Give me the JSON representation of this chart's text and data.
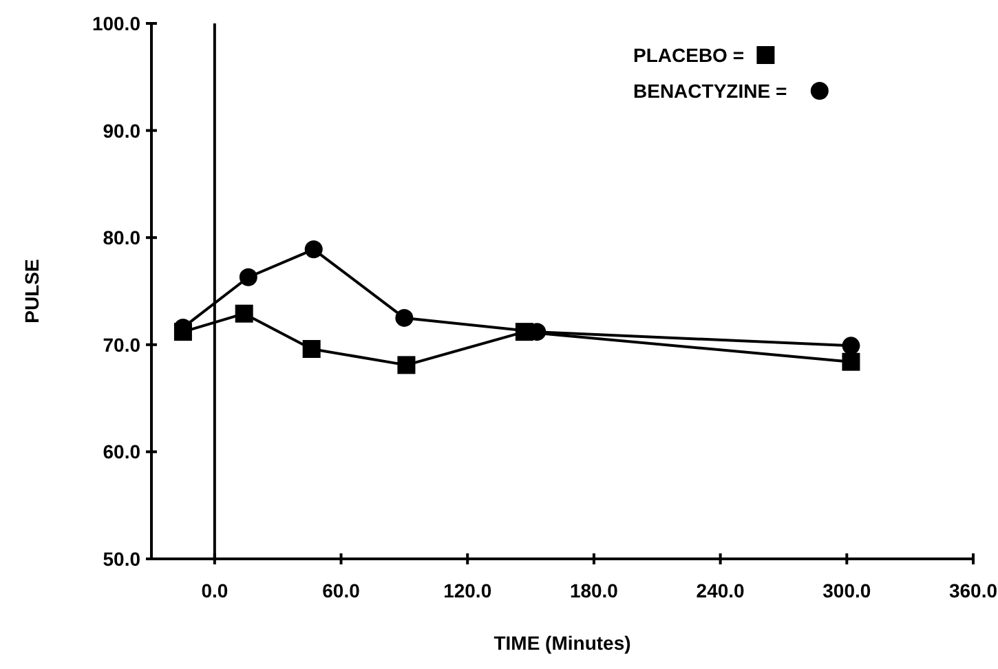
{
  "chart_data": {
    "type": "line",
    "xlabel": "TIME (Minutes)",
    "ylabel": "PULSE",
    "xlim": [
      -30,
      360
    ],
    "ylim": [
      50,
      100
    ],
    "xticks": [
      {
        "value": 0,
        "label": "0.0"
      },
      {
        "value": 60,
        "label": "60.0"
      },
      {
        "value": 120,
        "label": "120.0"
      },
      {
        "value": 180,
        "label": "180.0"
      },
      {
        "value": 240,
        "label": "240.0"
      },
      {
        "value": 300,
        "label": "300.0"
      },
      {
        "value": 360,
        "label": "360.0"
      }
    ],
    "yticks": [
      {
        "value": 50,
        "label": "50.0"
      },
      {
        "value": 60,
        "label": "60.0"
      },
      {
        "value": 70,
        "label": "70.0"
      },
      {
        "value": 80,
        "label": "80.0"
      },
      {
        "value": 90,
        "label": "90.0"
      },
      {
        "value": 100,
        "label": "100.0"
      }
    ],
    "series": [
      {
        "name": "PLACEBO =",
        "color": "#000000",
        "marker": "square",
        "x": [
          -15,
          14,
          46,
          91,
          147,
          302
        ],
        "values": [
          71.2,
          72.9,
          69.6,
          68.1,
          71.2,
          68.4
        ]
      },
      {
        "name": "BENACTYZINE =",
        "color": "#000000",
        "marker": "circle",
        "x": [
          -15,
          16,
          47,
          90,
          153,
          302
        ],
        "values": [
          71.6,
          76.3,
          78.9,
          72.5,
          71.2,
          69.9
        ]
      }
    ],
    "ref_lines": [
      {
        "axis": "x",
        "value": 0
      }
    ],
    "legend": "top right",
    "grid": false
  }
}
